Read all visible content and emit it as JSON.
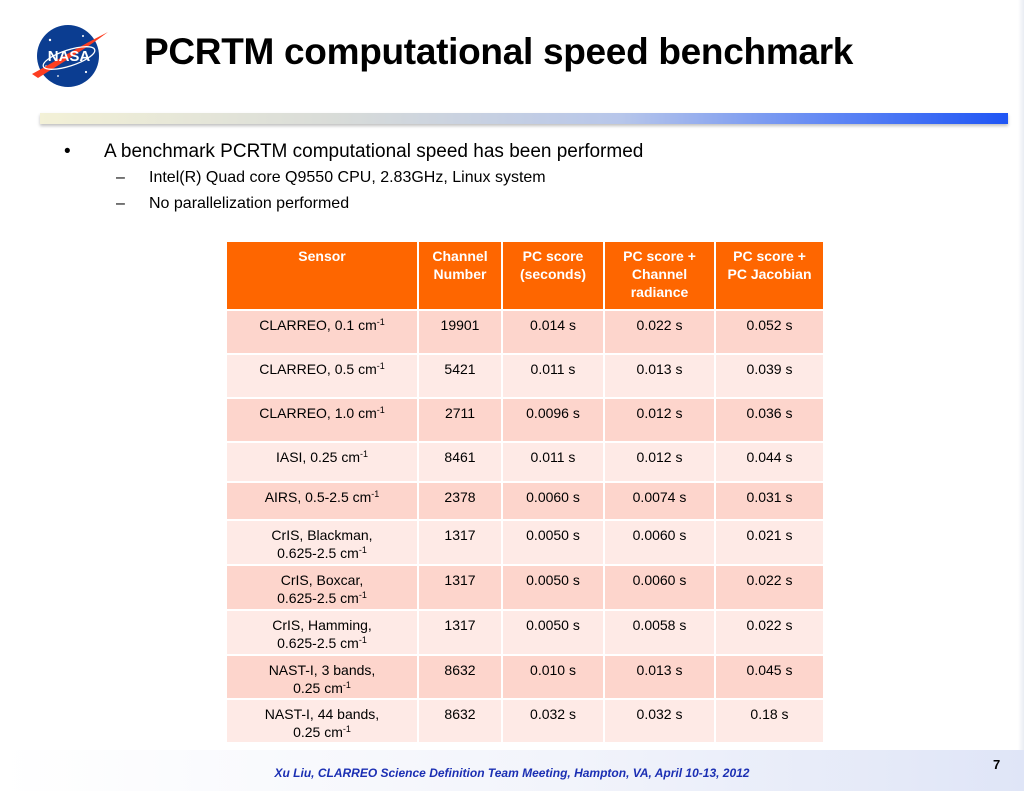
{
  "slide": {
    "title": "PCRTM computational speed benchmark",
    "logo_text": "NASA",
    "bullet_main": "A benchmark PCRTM computational speed has been performed",
    "bullet_marker": "•",
    "sub_marker": "–",
    "sub_bullets": [
      "Intel(R) Quad core Q9550  CPU, 2.83GHz, Linux system",
      "No parallelization performed"
    ],
    "footer": "Xu Liu, CLARREO Science Definition Team Meeting, Hampton, VA, April 10-13, 2012",
    "page_number": "7"
  },
  "table": {
    "headers": [
      [
        "Sensor"
      ],
      [
        "Channel",
        "Number"
      ],
      [
        "PC score",
        "(seconds)"
      ],
      [
        "PC score +",
        "Channel",
        "radiance"
      ],
      [
        "PC score +",
        "PC Jacobian"
      ]
    ],
    "rows": [
      {
        "sensor_line1": "CLARREO, 0.1 cm",
        "sensor_sup": "-1",
        "sensor_line2": "",
        "channels": "19901",
        "pc_score": "0.014 s",
        "pc_radiance": "0.022 s",
        "pc_jacobian": "0.052 s"
      },
      {
        "sensor_line1": "CLARREO, 0.5 cm",
        "sensor_sup": "-1",
        "sensor_line2": "",
        "channels": "5421",
        "pc_score": "0.011 s",
        "pc_radiance": "0.013 s",
        "pc_jacobian": "0.039 s"
      },
      {
        "sensor_line1": "CLARREO, 1.0 cm",
        "sensor_sup": "-1",
        "sensor_line2": "",
        "channels": "2711",
        "pc_score": "0.0096 s",
        "pc_radiance": "0.012 s",
        "pc_jacobian": "0.036 s"
      },
      {
        "sensor_line1": "IASI, 0.25 cm",
        "sensor_sup": "-1",
        "sensor_line2": "",
        "channels": "8461",
        "pc_score": "0.011 s",
        "pc_radiance": "0.012 s",
        "pc_jacobian": "0.044 s"
      },
      {
        "sensor_line1": "AIRS, 0.5-2.5 cm",
        "sensor_sup": "-1",
        "sensor_line2": "",
        "channels": "2378",
        "pc_score": "0.0060 s",
        "pc_radiance": "0.0074 s",
        "pc_jacobian": "0.031 s"
      },
      {
        "sensor_line1": "CrIS, Blackman,",
        "sensor_sup": "-1",
        "sensor_line2": "0.625-2.5  cm",
        "channels": "1317",
        "pc_score": "0.0050 s",
        "pc_radiance": "0.0060 s",
        "pc_jacobian": "0.021 s"
      },
      {
        "sensor_line1": "CrIS, Boxcar,",
        "sensor_sup": "-1",
        "sensor_line2": "0.625-2.5  cm",
        "channels": "1317",
        "pc_score": "0.0050 s",
        "pc_radiance": "0.0060 s",
        "pc_jacobian": "0.022 s"
      },
      {
        "sensor_line1": "CrIS, Hamming,",
        "sensor_sup": "-1",
        "sensor_line2": "0.625-2.5  cm",
        "channels": "1317",
        "pc_score": "0.0050 s",
        "pc_radiance": "0.0058 s",
        "pc_jacobian": "0.022 s"
      },
      {
        "sensor_line1": "NAST-I, 3 bands,",
        "sensor_sup": "-1",
        "sensor_line2": "0.25 cm",
        "channels": "8632",
        "pc_score": "0.010 s",
        "pc_radiance": "0.013 s",
        "pc_jacobian": "0.045 s"
      },
      {
        "sensor_line1": "NAST-I, 44 bands,",
        "sensor_sup": "-1",
        "sensor_line2": "0.25 cm",
        "channels": "8632",
        "pc_score": "0.032 s",
        "pc_radiance": "0.032 s",
        "pc_jacobian": "0.18 s"
      }
    ]
  },
  "colors": {
    "header_bg": "#fe6600",
    "row_dark": "#fdd5cc",
    "row_light": "#feeae6",
    "footer_text": "#1b2fb3",
    "nasa_blue": "#0b3d91",
    "nasa_red": "#fc3d21"
  }
}
